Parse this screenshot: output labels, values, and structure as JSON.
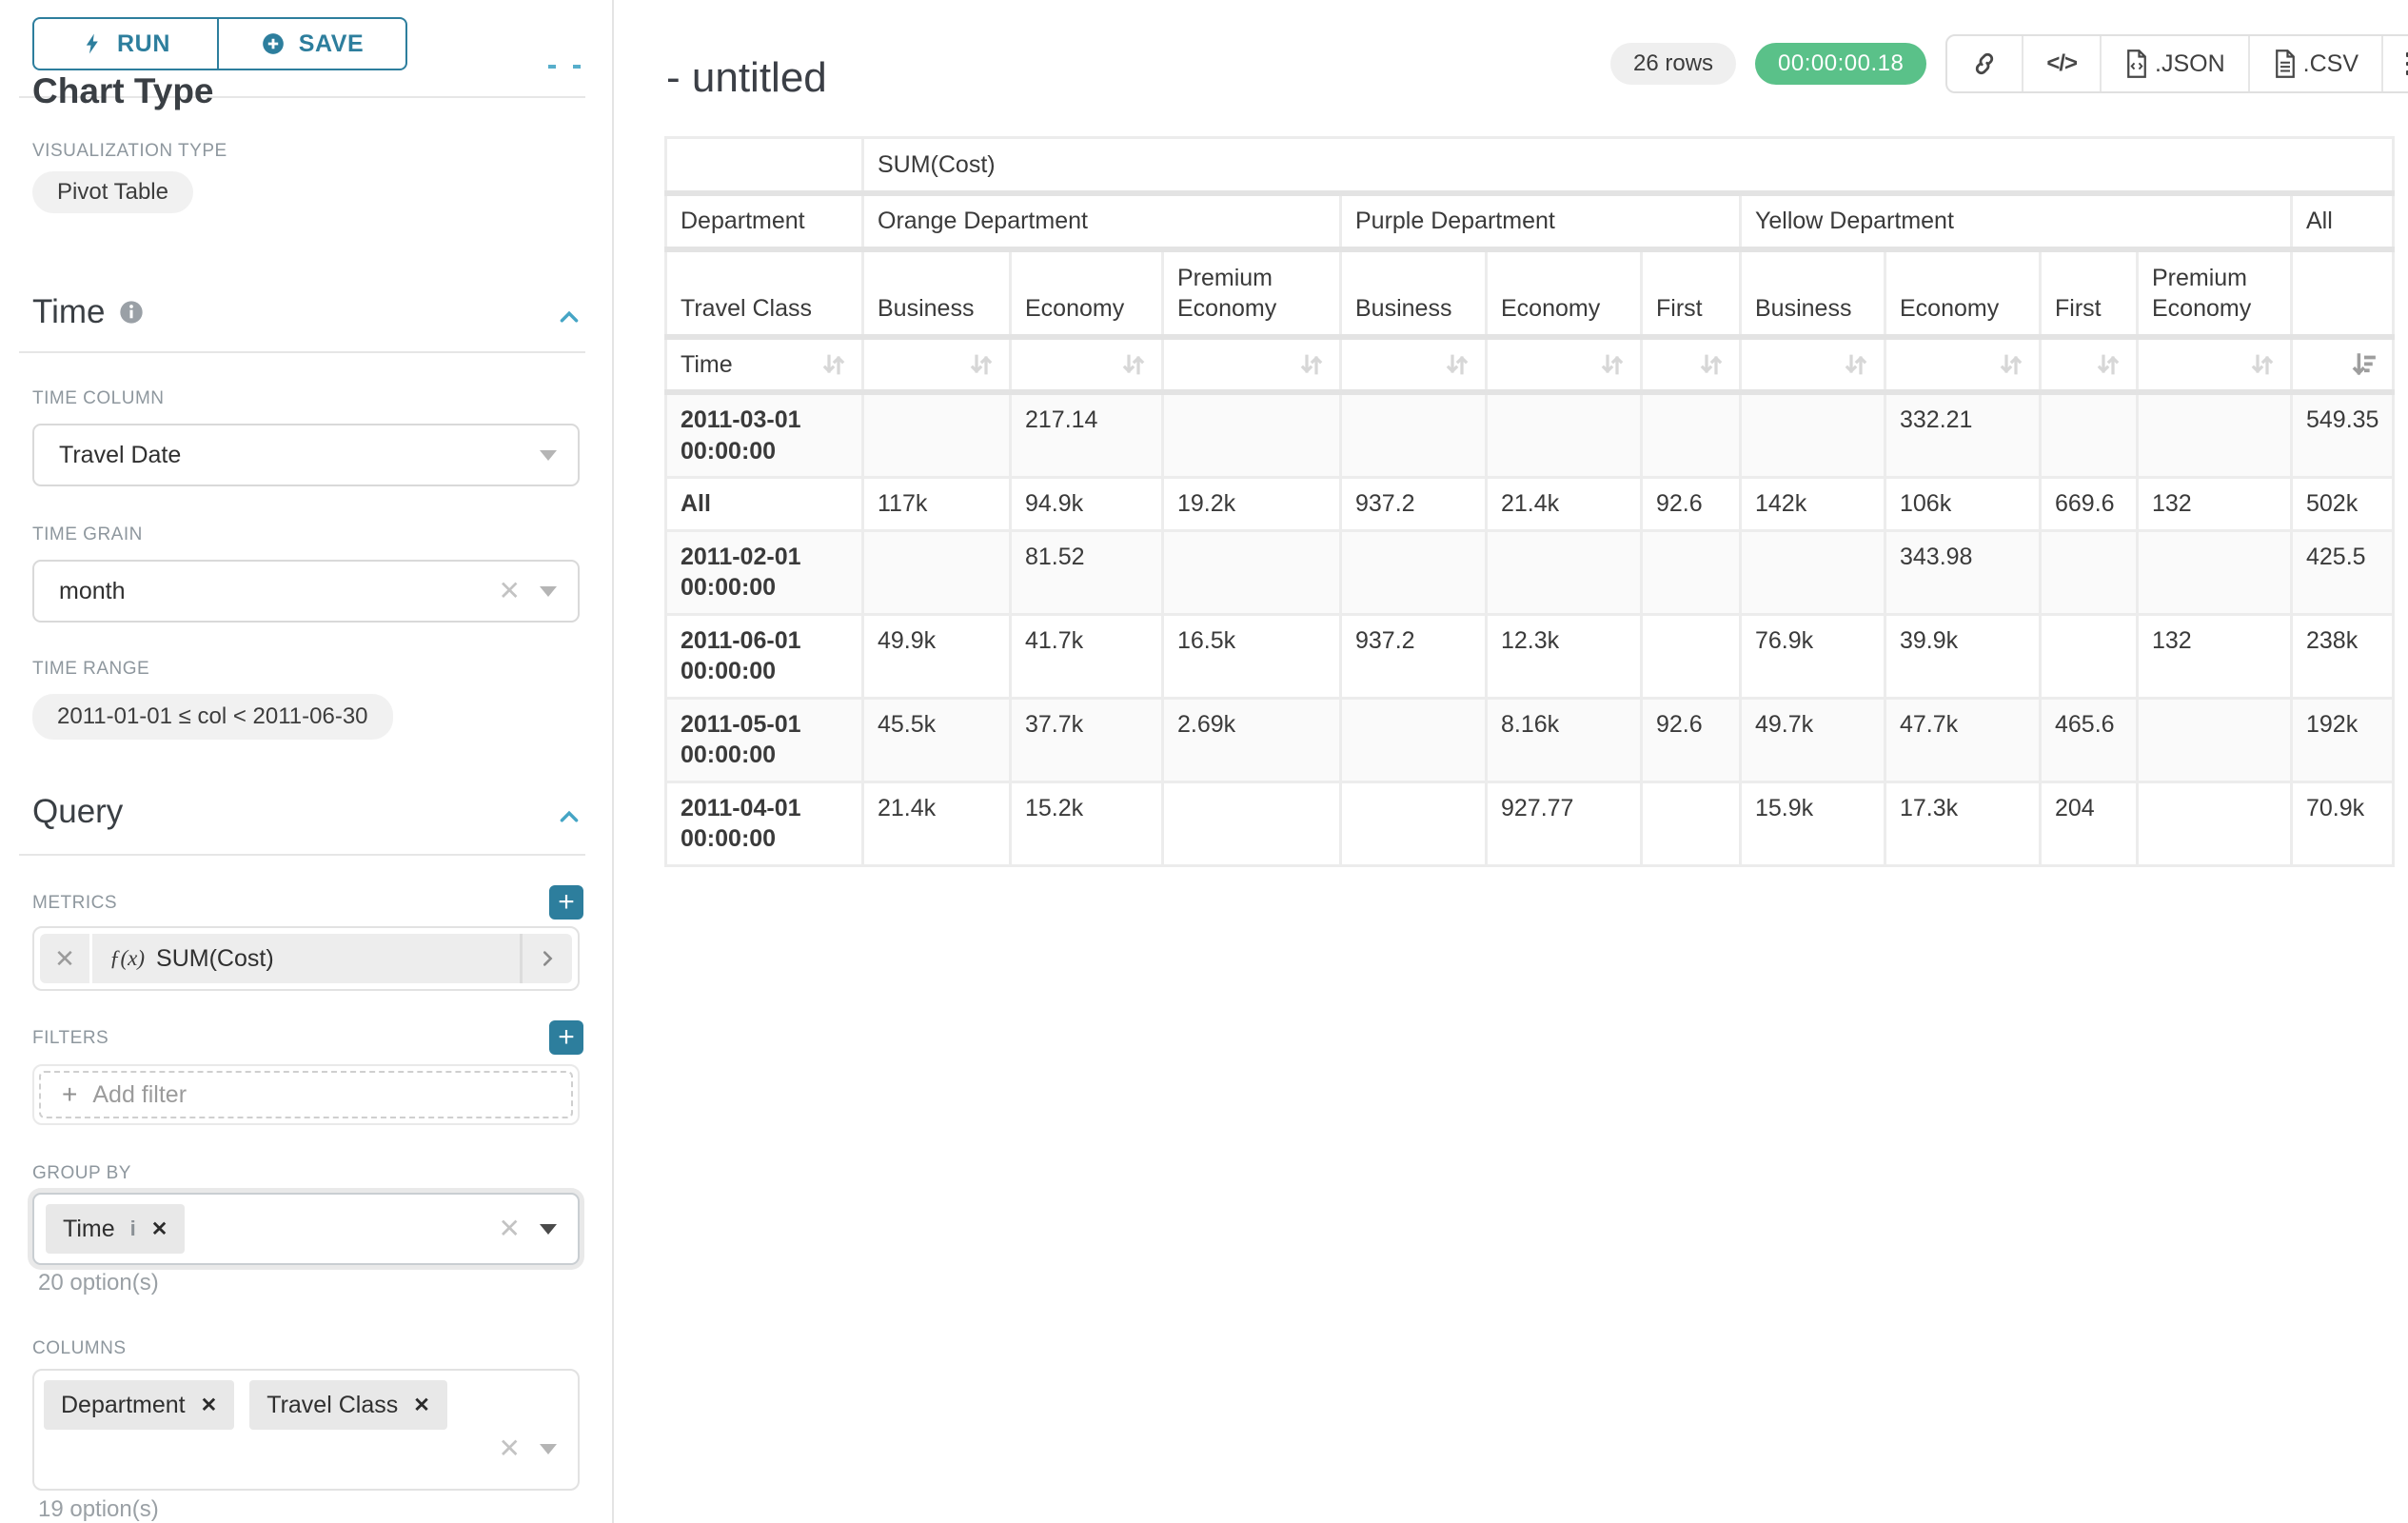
{
  "sidebar": {
    "run_label": "RUN",
    "save_label": "SAVE",
    "chart_type_heading": "Chart Type",
    "viz_type_label": "VISUALIZATION TYPE",
    "viz_type_value": "Pivot Table",
    "time": {
      "title": "Time",
      "column_label": "TIME COLUMN",
      "column_value": "Travel Date",
      "grain_label": "TIME GRAIN",
      "grain_value": "month",
      "range_label": "TIME RANGE",
      "range_value": "2011-01-01 ≤ col < 2011-06-30"
    },
    "query": {
      "title": "Query",
      "metrics_label": "METRICS",
      "metric_fn_label": "ƒ(x)",
      "metric_value": "SUM(Cost)",
      "filters_label": "FILTERS",
      "add_filter_label": "Add filter",
      "groupby_label": "GROUP BY",
      "groupby_tags": [
        {
          "label": "Time",
          "info": true
        }
      ],
      "groupby_option_count": "20 option(s)",
      "columns_label": "COLUMNS",
      "columns_tags": [
        {
          "label": "Department"
        },
        {
          "label": "Travel Class"
        }
      ],
      "columns_option_count": "19 option(s)"
    }
  },
  "header": {
    "title": "- untitled",
    "rows_badge": "26 rows",
    "timer_badge": "00:00:00.18",
    "export_json_label": ".JSON",
    "export_csv_label": ".CSV"
  },
  "chart_data": {
    "type": "table",
    "metric": "SUM(Cost)",
    "corner_labels": [
      "Department",
      "Travel Class",
      "Time"
    ],
    "column_groups": [
      {
        "label": "Orange Department",
        "cols": [
          "Business",
          "Economy",
          "Premium Economy"
        ]
      },
      {
        "label": "Purple Department",
        "cols": [
          "Business",
          "Economy",
          "First"
        ]
      },
      {
        "label": "Yellow Department",
        "cols": [
          "Business",
          "Economy",
          "First",
          "Premium Economy"
        ]
      },
      {
        "label": "All",
        "cols": [
          ""
        ]
      }
    ],
    "sort": {
      "column": "All",
      "direction": "desc"
    },
    "rows": [
      {
        "label": "2011-03-01 00:00:00",
        "values": [
          "",
          "217.14",
          "",
          "",
          "",
          "",
          "",
          "332.21",
          "",
          "",
          "549.35"
        ]
      },
      {
        "label": "All",
        "values": [
          "117k",
          "94.9k",
          "19.2k",
          "937.2",
          "21.4k",
          "92.6",
          "142k",
          "106k",
          "669.6",
          "132",
          "502k"
        ]
      },
      {
        "label": "2011-02-01 00:00:00",
        "values": [
          "",
          "81.52",
          "",
          "",
          "",
          "",
          "",
          "343.98",
          "",
          "",
          "425.5"
        ]
      },
      {
        "label": "2011-06-01 00:00:00",
        "values": [
          "49.9k",
          "41.7k",
          "16.5k",
          "937.2",
          "12.3k",
          "",
          "76.9k",
          "39.9k",
          "",
          "132",
          "238k"
        ]
      },
      {
        "label": "2011-05-01 00:00:00",
        "values": [
          "45.5k",
          "37.7k",
          "2.69k",
          "",
          "8.16k",
          "92.6",
          "49.7k",
          "47.7k",
          "465.6",
          "",
          "192k"
        ]
      },
      {
        "label": "2011-04-01 00:00:00",
        "values": [
          "21.4k",
          "15.2k",
          "",
          "",
          "927.77",
          "",
          "15.9k",
          "17.3k",
          "204",
          "",
          "70.9k"
        ]
      }
    ]
  }
}
